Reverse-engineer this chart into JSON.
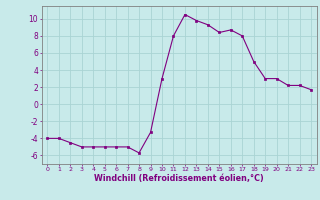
{
  "x": [
    0,
    1,
    2,
    3,
    4,
    5,
    6,
    7,
    8,
    9,
    10,
    11,
    12,
    13,
    14,
    15,
    16,
    17,
    18,
    19,
    20,
    21,
    22,
    23
  ],
  "y": [
    -4,
    -4,
    -4.5,
    -5,
    -5,
    -5,
    -5,
    -5,
    -5.7,
    -3.3,
    3,
    8,
    10.5,
    9.8,
    9.3,
    8.4,
    8.7,
    8,
    5,
    3,
    3,
    2.2,
    2.2,
    1.7
  ],
  "line_color": "#800080",
  "marker_color": "#800080",
  "bg_color": "#c8eaea",
  "grid_color": "#aad4d4",
  "axis_color": "#808080",
  "xlabel": "Windchill (Refroidissement éolien,°C)",
  "xlim": [
    -0.5,
    23.5
  ],
  "ylim": [
    -7,
    11.5
  ],
  "yticks": [
    -6,
    -4,
    -2,
    0,
    2,
    4,
    6,
    8,
    10
  ],
  "xticks": [
    0,
    1,
    2,
    3,
    4,
    5,
    6,
    7,
    8,
    9,
    10,
    11,
    12,
    13,
    14,
    15,
    16,
    17,
    18,
    19,
    20,
    21,
    22,
    23
  ],
  "label_color": "#800080",
  "tick_color": "#800080",
  "xlabel_fontsize": 5.8,
  "xtick_fontsize": 4.5,
  "ytick_fontsize": 5.5
}
